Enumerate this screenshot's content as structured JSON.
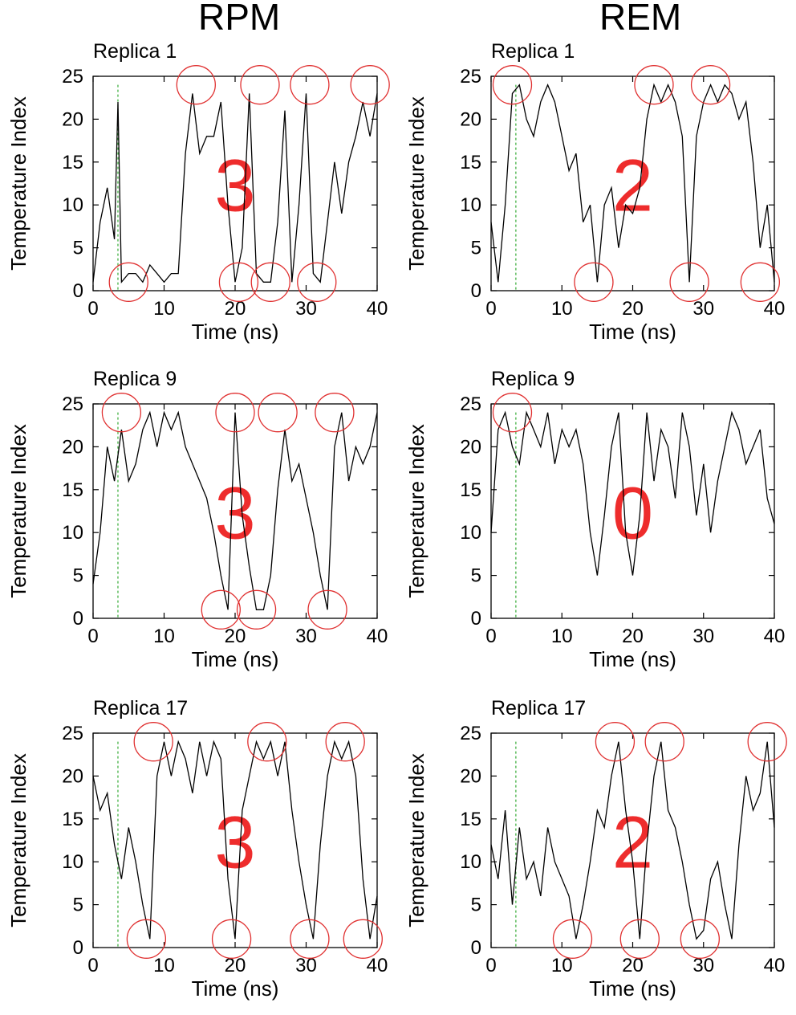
{
  "columns": [
    {
      "title": "RPM"
    },
    {
      "title": "REM"
    }
  ],
  "chart_data": [
    {
      "type": "line",
      "column": "RPM",
      "replica_label": "Replica 1",
      "xlabel": "Time (ns)",
      "ylabel": "Temperature Index",
      "xlim": [
        0,
        40
      ],
      "ylim": [
        0,
        25
      ],
      "xticks": [
        0,
        10,
        20,
        30,
        40
      ],
      "yticks": [
        0,
        5,
        10,
        15,
        20,
        25
      ],
      "count_label": "3",
      "marker_x": 3.5,
      "series": [
        {
          "x": [
            0,
            1,
            2,
            3,
            3.5,
            4,
            5,
            6,
            7,
            8,
            9,
            10,
            11,
            12,
            13,
            14,
            15,
            16,
            17,
            18,
            19,
            20,
            21,
            22,
            23,
            24,
            25,
            26,
            27,
            28,
            29,
            30,
            31,
            32,
            33,
            34,
            35,
            36,
            37,
            38,
            39,
            40
          ],
          "y": [
            1,
            8,
            12,
            6,
            22,
            1,
            2,
            2,
            1,
            3,
            2,
            1,
            2,
            2,
            16,
            23,
            16,
            18,
            18,
            22,
            10,
            1,
            5,
            23,
            2,
            1,
            1,
            8,
            21,
            1,
            10,
            23,
            2,
            1,
            8,
            15,
            9,
            15,
            18,
            22,
            18,
            23
          ]
        }
      ],
      "circles": [
        {
          "x": 5,
          "y": 1
        },
        {
          "x": 14.5,
          "y": 24
        },
        {
          "x": 20.5,
          "y": 1
        },
        {
          "x": 23.5,
          "y": 24
        },
        {
          "x": 25,
          "y": 1
        },
        {
          "x": 30.5,
          "y": 24
        },
        {
          "x": 31.5,
          "y": 1
        },
        {
          "x": 39,
          "y": 24
        }
      ]
    },
    {
      "type": "line",
      "column": "REM",
      "replica_label": "Replica 1",
      "xlabel": "Time (ns)",
      "ylabel": "Temperature Index",
      "xlim": [
        0,
        40
      ],
      "ylim": [
        0,
        25
      ],
      "xticks": [
        0,
        10,
        20,
        30,
        40
      ],
      "yticks": [
        0,
        5,
        10,
        15,
        20,
        25
      ],
      "count_label": "2",
      "marker_x": 3.5,
      "series": [
        {
          "x": [
            0,
            1,
            2,
            3,
            4,
            5,
            6,
            7,
            8,
            9,
            10,
            11,
            12,
            13,
            14,
            15,
            16,
            17,
            18,
            19,
            20,
            21,
            22,
            23,
            24,
            25,
            26,
            27,
            28,
            29,
            30,
            31,
            32,
            33,
            34,
            35,
            36,
            37,
            38,
            39,
            40
          ],
          "y": [
            8,
            1,
            10,
            23,
            24,
            20,
            18,
            22,
            24,
            22,
            18,
            14,
            16,
            8,
            10,
            1,
            10,
            12,
            5,
            10,
            9,
            12,
            20,
            24,
            22,
            24,
            22,
            18,
            1,
            18,
            22,
            24,
            22,
            24,
            23,
            20,
            22,
            15,
            5,
            10,
            1
          ]
        }
      ],
      "circles": [
        {
          "x": 3,
          "y": 24
        },
        {
          "x": 14.5,
          "y": 1
        },
        {
          "x": 23,
          "y": 24
        },
        {
          "x": 28,
          "y": 1
        },
        {
          "x": 31,
          "y": 24
        },
        {
          "x": 38,
          "y": 1
        }
      ]
    },
    {
      "type": "line",
      "column": "RPM",
      "replica_label": "Replica 9",
      "xlabel": "Time (ns)",
      "ylabel": "Temperature Index",
      "xlim": [
        0,
        40
      ],
      "ylim": [
        0,
        25
      ],
      "xticks": [
        0,
        10,
        20,
        30,
        40
      ],
      "yticks": [
        0,
        5,
        10,
        15,
        20,
        25
      ],
      "count_label": "3",
      "marker_x": 3.5,
      "series": [
        {
          "x": [
            0,
            1,
            2,
            3,
            4,
            5,
            6,
            7,
            8,
            9,
            10,
            11,
            12,
            13,
            14,
            15,
            16,
            17,
            18,
            19,
            20,
            21,
            22,
            23,
            24,
            25,
            26,
            27,
            28,
            29,
            30,
            31,
            32,
            33,
            34,
            35,
            36,
            37,
            38,
            39,
            40
          ],
          "y": [
            4,
            10,
            20,
            16,
            22,
            16,
            18,
            22,
            24,
            20,
            24,
            22,
            24,
            20,
            18,
            16,
            14,
            10,
            5,
            1,
            24,
            12,
            6,
            1,
            1,
            5,
            15,
            22,
            16,
            18,
            14,
            10,
            5,
            1,
            20,
            24,
            16,
            20,
            18,
            20,
            24
          ]
        }
      ],
      "circles": [
        {
          "x": 4,
          "y": 24
        },
        {
          "x": 18,
          "y": 1
        },
        {
          "x": 20,
          "y": 24
        },
        {
          "x": 23,
          "y": 1
        },
        {
          "x": 26,
          "y": 24
        },
        {
          "x": 33,
          "y": 1
        },
        {
          "x": 34,
          "y": 24
        }
      ]
    },
    {
      "type": "line",
      "column": "REM",
      "replica_label": "Replica 9",
      "xlabel": "Time (ns)",
      "ylabel": "Temperature Index",
      "xlim": [
        0,
        40
      ],
      "ylim": [
        0,
        25
      ],
      "xticks": [
        0,
        10,
        20,
        30,
        40
      ],
      "yticks": [
        0,
        5,
        10,
        15,
        20,
        25
      ],
      "count_label": "0",
      "marker_x": 3.5,
      "series": [
        {
          "x": [
            0,
            1,
            2,
            3,
            4,
            5,
            6,
            7,
            8,
            9,
            10,
            11,
            12,
            13,
            14,
            15,
            16,
            17,
            18,
            19,
            20,
            21,
            22,
            23,
            24,
            25,
            26,
            27,
            28,
            29,
            30,
            31,
            32,
            33,
            34,
            35,
            36,
            37,
            38,
            39,
            40
          ],
          "y": [
            10,
            22,
            24,
            20,
            18,
            24,
            22,
            20,
            24,
            18,
            22,
            20,
            22,
            18,
            10,
            5,
            12,
            20,
            24,
            10,
            5,
            12,
            24,
            16,
            22,
            20,
            14,
            24,
            20,
            12,
            18,
            10,
            16,
            20,
            24,
            22,
            18,
            20,
            22,
            14,
            11
          ]
        }
      ],
      "circles": [
        {
          "x": 3,
          "y": 24
        }
      ]
    },
    {
      "type": "line",
      "column": "RPM",
      "replica_label": "Replica 17",
      "xlabel": "Time (ns)",
      "ylabel": "Temperature Index",
      "xlim": [
        0,
        40
      ],
      "ylim": [
        0,
        25
      ],
      "xticks": [
        0,
        10,
        20,
        30,
        40
      ],
      "yticks": [
        0,
        5,
        10,
        15,
        20,
        25
      ],
      "count_label": "3",
      "marker_x": 3.5,
      "series": [
        {
          "x": [
            0,
            1,
            2,
            3,
            4,
            5,
            6,
            7,
            8,
            9,
            10,
            11,
            12,
            13,
            14,
            15,
            16,
            17,
            18,
            19,
            20,
            21,
            22,
            23,
            24,
            25,
            26,
            27,
            28,
            29,
            30,
            31,
            32,
            33,
            34,
            35,
            36,
            37,
            38,
            39,
            40
          ],
          "y": [
            20,
            16,
            18,
            12,
            8,
            14,
            10,
            5,
            1,
            20,
            24,
            20,
            24,
            22,
            18,
            24,
            20,
            24,
            22,
            8,
            1,
            16,
            20,
            24,
            22,
            24,
            20,
            24,
            16,
            10,
            5,
            1,
            12,
            20,
            24,
            22,
            24,
            20,
            8,
            1,
            6
          ]
        }
      ],
      "circles": [
        {
          "x": 7.5,
          "y": 1
        },
        {
          "x": 8.5,
          "y": 24
        },
        {
          "x": 19.5,
          "y": 1
        },
        {
          "x": 24.5,
          "y": 24
        },
        {
          "x": 30.5,
          "y": 1
        },
        {
          "x": 35.5,
          "y": 24
        },
        {
          "x": 38,
          "y": 1
        }
      ]
    },
    {
      "type": "line",
      "column": "REM",
      "replica_label": "Replica 17",
      "xlabel": "Time (ns)",
      "ylabel": "Temperature Index",
      "xlim": [
        0,
        40
      ],
      "ylim": [
        0,
        25
      ],
      "xticks": [
        0,
        10,
        20,
        30,
        40
      ],
      "yticks": [
        0,
        5,
        10,
        15,
        20,
        25
      ],
      "count_label": "2",
      "marker_x": 3.5,
      "series": [
        {
          "x": [
            0,
            1,
            2,
            3,
            4,
            5,
            6,
            7,
            8,
            9,
            10,
            11,
            12,
            13,
            14,
            15,
            16,
            17,
            18,
            19,
            20,
            21,
            22,
            23,
            24,
            25,
            26,
            27,
            28,
            29,
            30,
            31,
            32,
            33,
            34,
            35,
            36,
            37,
            38,
            39,
            40
          ],
          "y": [
            12,
            8,
            16,
            5,
            14,
            8,
            10,
            6,
            14,
            10,
            8,
            6,
            1,
            5,
            10,
            16,
            14,
            20,
            24,
            16,
            10,
            1,
            12,
            20,
            24,
            16,
            14,
            10,
            5,
            1,
            2,
            8,
            10,
            5,
            1,
            12,
            20,
            16,
            18,
            24,
            14
          ]
        }
      ],
      "circles": [
        {
          "x": 11.5,
          "y": 1
        },
        {
          "x": 17.5,
          "y": 24
        },
        {
          "x": 21,
          "y": 1
        },
        {
          "x": 24.5,
          "y": 24
        },
        {
          "x": 29.5,
          "y": 1
        },
        {
          "x": 39,
          "y": 24
        }
      ]
    }
  ]
}
